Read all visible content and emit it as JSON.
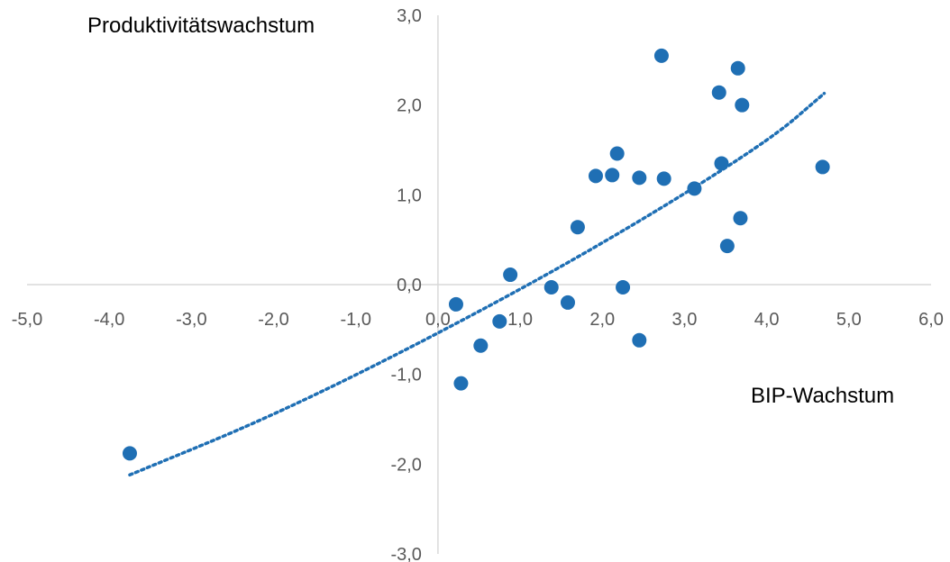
{
  "chart_data": {
    "type": "scatter",
    "title": "",
    "xlabel": "BIP-Wachstum",
    "ylabel": "Produktivitätswachstum",
    "xlim": [
      -5.0,
      6.0
    ],
    "ylim": [
      -3.0,
      3.0
    ],
    "xticks": [
      "-5,0",
      "-4,0",
      "-3,0",
      "-2,0",
      "-1,0",
      "0,0",
      "1,0",
      "2,0",
      "3,0",
      "4,0",
      "5,0",
      "6,0"
    ],
    "yticks": [
      "-3,0",
      "-2,0",
      "-1,0",
      "0,0",
      "1,0",
      "2,0",
      "3,0"
    ],
    "grid": false,
    "legend": "none",
    "point_color": "#1f6fb4",
    "trendline_color": "#1f6fb4",
    "trendline_style": "dotted",
    "series": [
      {
        "points": [
          [
            -3.75,
            -1.88
          ],
          [
            0.22,
            -0.22
          ],
          [
            0.28,
            -1.1
          ],
          [
            0.52,
            -0.68
          ],
          [
            0.75,
            -0.41
          ],
          [
            0.88,
            0.11
          ],
          [
            1.38,
            -0.03
          ],
          [
            1.58,
            -0.2
          ],
          [
            1.7,
            0.64
          ],
          [
            1.92,
            1.21
          ],
          [
            2.12,
            1.22
          ],
          [
            2.18,
            1.46
          ],
          [
            2.25,
            -0.03
          ],
          [
            2.45,
            1.19
          ],
          [
            2.45,
            -0.62
          ],
          [
            2.72,
            2.55
          ],
          [
            2.75,
            1.18
          ],
          [
            3.12,
            1.07
          ],
          [
            3.42,
            2.14
          ],
          [
            3.45,
            1.35
          ],
          [
            3.52,
            0.43
          ],
          [
            3.65,
            2.41
          ],
          [
            3.68,
            0.74
          ],
          [
            3.7,
            2.0
          ],
          [
            4.68,
            1.31
          ]
        ]
      }
    ],
    "trendline": {
      "points": [
        [
          -3.75,
          -2.12
        ],
        [
          -2.0,
          -1.46
        ],
        [
          0.0,
          -0.55
        ],
        [
          2.0,
          0.45
        ],
        [
          4.0,
          1.58
        ],
        [
          4.7,
          2.13
        ]
      ]
    }
  }
}
